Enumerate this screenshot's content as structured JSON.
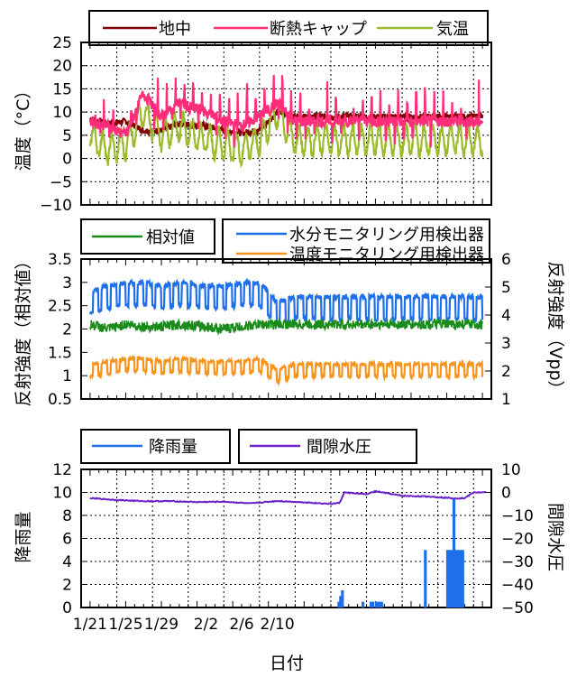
{
  "chart_data": [
    {
      "type": "line",
      "ylabel": "温度（°C）",
      "ylim": [
        -10,
        25
      ],
      "yticks": [
        "25",
        "20",
        "15",
        "10",
        "5",
        "0",
        "−5",
        "−10"
      ],
      "x_range": [
        "1/21",
        "2/12"
      ],
      "grid": true,
      "legend_position": "top",
      "series": [
        {
          "name": "地中",
          "color": "#800000",
          "x": [
            "1/21",
            "1/23",
            "1/25",
            "1/27",
            "1/29",
            "1/31",
            "2/2",
            "2/4",
            "2/6",
            "2/8",
            "2/10",
            "2/12"
          ],
          "values": [
            8.5,
            7.5,
            8,
            6,
            6,
            7.5,
            7,
            6,
            5.5,
            6,
            10,
            9
          ]
        },
        {
          "name": "断熱キャップ",
          "color": "#ff2d7a",
          "x": [
            "1/21",
            "1/23",
            "1/25",
            "1/27",
            "1/29",
            "1/31",
            "2/2",
            "2/4",
            "2/6",
            "2/8",
            "2/10",
            "2/12"
          ],
          "values": [
            8,
            7,
            5,
            14,
            9,
            12,
            10,
            8,
            7,
            9,
            12,
            8
          ]
        },
        {
          "name": "気温",
          "color": "#9bbb2c",
          "x": [
            "1/21",
            "1/23",
            "1/25",
            "1/27",
            "1/29",
            "1/31",
            "2/2",
            "2/4",
            "2/6",
            "2/8",
            "2/10",
            "2/12"
          ],
          "values": [
            5,
            2,
            3,
            10,
            5,
            7,
            4,
            3,
            2,
            4,
            10,
            4
          ]
        }
      ]
    },
    {
      "type": "line",
      "ylabel": "反射強度（相対値）",
      "ylabel_right": "反射強度（Vpp）",
      "ylim": [
        0.5,
        3.5
      ],
      "ylim_right": [
        1,
        6
      ],
      "yticks": [
        "3.5",
        "3",
        "2.5",
        "2",
        "1.5",
        "1",
        "0.5"
      ],
      "yticks_right": [
        "6",
        "5",
        "4",
        "3",
        "2",
        "1"
      ],
      "grid": false,
      "legend_position": "top",
      "series": [
        {
          "name": "相対値",
          "color": "#1a8a1a",
          "axis": "left",
          "x": [
            "1/21",
            "1/23",
            "1/25",
            "1/27",
            "1/29",
            "1/31",
            "2/2",
            "2/4",
            "2/6",
            "2/8",
            "2/10",
            "2/12"
          ],
          "values": [
            2.1,
            2.0,
            2.1,
            2.05,
            2.05,
            2.1,
            2.05,
            2.0,
            2.05,
            2.1,
            2.1,
            2.1
          ]
        },
        {
          "name": "水分モニタリング用検出器",
          "color": "#1f6fe8",
          "axis": "right",
          "x": [
            "1/21",
            "1/23",
            "1/25",
            "1/27",
            "1/29",
            "1/31",
            "2/2",
            "2/4",
            "2/6",
            "2/8",
            "2/10",
            "2/12"
          ],
          "values": [
            4.4,
            4.6,
            4.7,
            4.7,
            4.6,
            4.7,
            4.6,
            4.6,
            4.7,
            4.7,
            4.0,
            4.2
          ]
        },
        {
          "name": "温度モニタリング用検出器",
          "color": "#f7941d",
          "axis": "right",
          "x": [
            "1/21",
            "1/23",
            "1/25",
            "1/27",
            "1/29",
            "1/31",
            "2/2",
            "2/4",
            "2/6",
            "2/8",
            "2/10",
            "2/12"
          ],
          "values": [
            2.0,
            2.1,
            2.2,
            2.2,
            2.1,
            2.2,
            2.1,
            2.1,
            2.1,
            2.2,
            1.8,
            2.0
          ]
        }
      ]
    },
    {
      "type": "bar+line",
      "xlabel": "日付",
      "ylabel": "降雨量",
      "ylabel_right": "間隙水圧",
      "ylim": [
        0,
        12
      ],
      "ylim_right": [
        -50,
        10
      ],
      "yticks": [
        "12",
        "10",
        "8",
        "6",
        "4",
        "2",
        "0"
      ],
      "yticks_right": [
        "10",
        "0",
        "−10",
        "−20",
        "−30",
        "−40",
        "−50"
      ],
      "categories": [
        "1/21",
        "1/25",
        "1/29",
        "2/2",
        "2/6",
        "2/10"
      ],
      "grid": true,
      "legend_position": "top",
      "rain": {
        "name": "降雨量",
        "color": "#1f6fe8",
        "x_days": [
          27.9,
          28.1,
          28.3,
          30.6,
          31.5,
          31.7,
          32.1,
          32.4,
          32.7,
          37.6,
          40.1,
          40.3,
          40.6,
          40.8,
          41.0,
          41.2,
          41.5,
          41.8
        ],
        "values": [
          0.5,
          1,
          1.5,
          0.5,
          0.5,
          0.5,
          0.5,
          0.5,
          0.5,
          5,
          5,
          5,
          5,
          9.5,
          5,
          5,
          5,
          5
        ]
      },
      "pore_pressure": {
        "name": "間隙水圧",
        "color": "#6a22c8",
        "x_days": [
          0,
          3,
          6,
          9,
          12,
          15,
          18,
          21,
          24,
          27,
          28,
          28.5,
          31,
          32,
          35,
          38,
          41,
          42,
          43,
          44.5
        ],
        "values": [
          -2.5,
          -3.3,
          -3.8,
          -3.8,
          -4.2,
          -4,
          -4.8,
          -3.7,
          -4.3,
          -5,
          -4.5,
          0,
          -0.8,
          0.5,
          -1.5,
          -1.8,
          -2.6,
          -2.5,
          0,
          0
        ]
      },
      "x_range_days": [
        -1,
        45
      ]
    }
  ]
}
